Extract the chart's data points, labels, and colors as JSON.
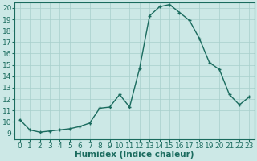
{
  "x": [
    0,
    1,
    2,
    3,
    4,
    5,
    6,
    7,
    8,
    9,
    10,
    11,
    12,
    13,
    14,
    15,
    16,
    17,
    18,
    19,
    20,
    21,
    22,
    23
  ],
  "y": [
    10.2,
    9.3,
    9.1,
    9.2,
    9.3,
    9.4,
    9.6,
    9.9,
    11.2,
    11.3,
    12.4,
    11.3,
    14.7,
    19.3,
    20.1,
    20.3,
    19.6,
    18.9,
    17.3,
    15.2,
    14.6,
    12.4,
    11.5,
    12.2
  ],
  "xlabel": "Humidex (Indice chaleur)",
  "xlim": [
    -0.5,
    23.5
  ],
  "ylim": [
    8.5,
    20.5
  ],
  "yticks": [
    9,
    10,
    11,
    12,
    13,
    14,
    15,
    16,
    17,
    18,
    19,
    20
  ],
  "xticks": [
    0,
    1,
    2,
    3,
    4,
    5,
    6,
    7,
    8,
    9,
    10,
    11,
    12,
    13,
    14,
    15,
    16,
    17,
    18,
    19,
    20,
    21,
    22,
    23
  ],
  "line_color": "#1a6b5e",
  "marker": "+",
  "marker_size": 3.5,
  "bg_color": "#cce8e6",
  "grid_color": "#a8cfcc",
  "xlabel_fontsize": 7.5,
  "tick_fontsize": 6.5,
  "line_width": 1.0,
  "marker_edge_width": 1.0
}
